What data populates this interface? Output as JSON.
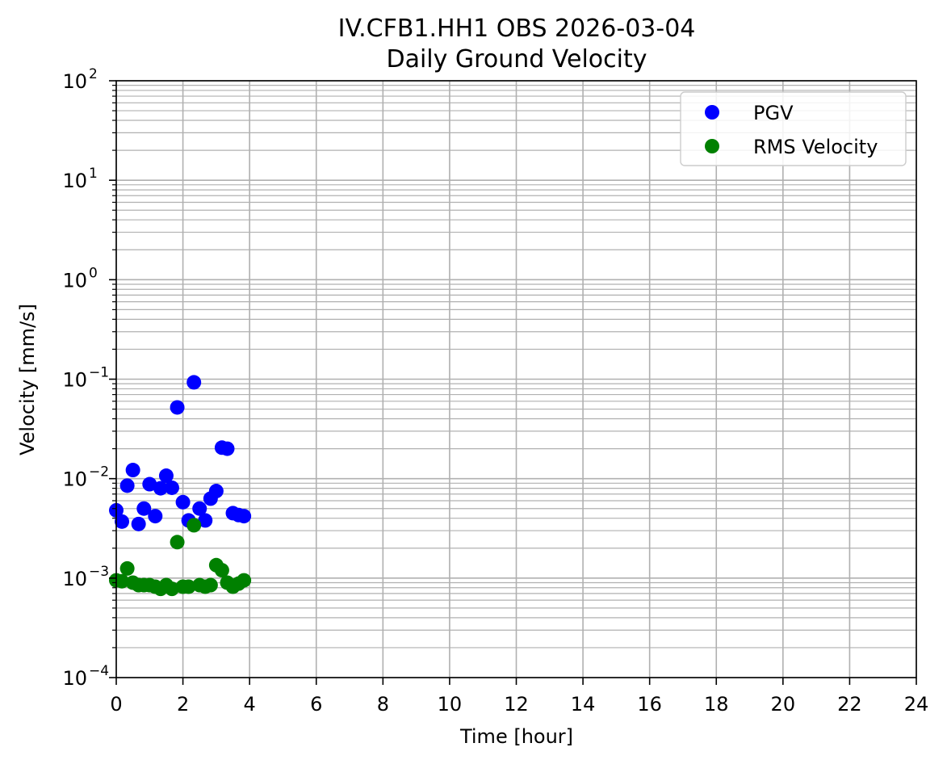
{
  "chart_data": {
    "type": "scatter",
    "title": "IV.CFB1.HH1 OBS 2026-03-04",
    "subtitle": "Daily Ground Velocity",
    "xlabel": "Time [hour]",
    "ylabel": "Velocity [mm/s]",
    "xlim": [
      0,
      24
    ],
    "ylim": [
      0.0001,
      100
    ],
    "yscale": "log",
    "grid": true,
    "legend_position": "top-right",
    "x_ticks": [
      0,
      2,
      4,
      6,
      8,
      10,
      12,
      14,
      16,
      18,
      20,
      22,
      24
    ],
    "x_tick_labels": [
      "0",
      "2",
      "4",
      "6",
      "8",
      "10",
      "12",
      "14",
      "16",
      "18",
      "20",
      "22",
      "24"
    ],
    "y_ticks": [
      {
        "value": 0.0001,
        "base": "10",
        "exp": "−4"
      },
      {
        "value": 0.001,
        "base": "10",
        "exp": "−3"
      },
      {
        "value": 0.01,
        "base": "10",
        "exp": "−2"
      },
      {
        "value": 0.1,
        "base": "10",
        "exp": "−1"
      },
      {
        "value": 1,
        "base": "10",
        "exp": "0"
      },
      {
        "value": 10,
        "base": "10",
        "exp": "1"
      },
      {
        "value": 100,
        "base": "10",
        "exp": "2"
      }
    ],
    "series": [
      {
        "name": "PGV",
        "color": "#0000ff",
        "x": [
          0.0,
          0.17,
          0.33,
          0.5,
          0.67,
          0.83,
          1.0,
          1.17,
          1.33,
          1.5,
          1.67,
          1.83,
          2.0,
          2.17,
          2.33,
          2.5,
          2.67,
          2.83,
          3.0,
          3.17,
          3.33,
          3.5,
          3.67,
          3.83
        ],
        "y": [
          0.0048,
          0.0037,
          0.0085,
          0.0122,
          0.0035,
          0.005,
          0.0088,
          0.0042,
          0.008,
          0.0107,
          0.0081,
          0.052,
          0.0058,
          0.0038,
          0.093,
          0.005,
          0.0038,
          0.0063,
          0.0075,
          0.0205,
          0.02,
          0.0045,
          0.0043,
          0.0042
        ]
      },
      {
        "name": "RMS Velocity",
        "color": "#008000",
        "x": [
          0.0,
          0.17,
          0.33,
          0.5,
          0.67,
          0.83,
          1.0,
          1.17,
          1.33,
          1.5,
          1.67,
          1.83,
          2.0,
          2.17,
          2.33,
          2.5,
          2.67,
          2.83,
          3.0,
          3.17,
          3.33,
          3.5,
          3.67,
          3.83
        ],
        "y": [
          0.00095,
          0.00093,
          0.00125,
          0.0009,
          0.00085,
          0.00085,
          0.00085,
          0.00082,
          0.00078,
          0.00085,
          0.00078,
          0.0023,
          0.00082,
          0.00082,
          0.0034,
          0.00085,
          0.00082,
          0.00085,
          0.00135,
          0.0012,
          0.0009,
          0.00082,
          0.00088,
          0.00095
        ]
      }
    ]
  }
}
